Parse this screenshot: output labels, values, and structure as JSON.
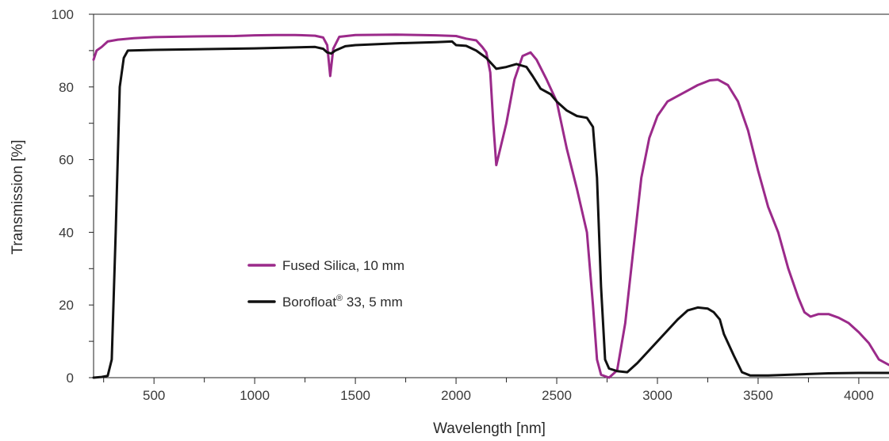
{
  "chart_data": {
    "type": "line",
    "xlabel": "Wavelength [nm]",
    "ylabel": "Transmission [%]",
    "xlim": [
      200,
      4150
    ],
    "ylim": [
      0,
      100
    ],
    "xticks": [
      {
        "value": 250,
        "label": ""
      },
      {
        "value": 500,
        "label": "500"
      },
      {
        "value": 750,
        "label": ""
      },
      {
        "value": 1000,
        "label": "1000"
      },
      {
        "value": 1250,
        "label": ""
      },
      {
        "value": 1500,
        "label": "1500"
      },
      {
        "value": 1750,
        "label": ""
      },
      {
        "value": 2000,
        "label": "2000"
      },
      {
        "value": 2250,
        "label": ""
      },
      {
        "value": 2500,
        "label": "2500"
      },
      {
        "value": 2750,
        "label": ""
      },
      {
        "value": 3000,
        "label": "3000"
      },
      {
        "value": 3250,
        "label": ""
      },
      {
        "value": 3500,
        "label": "3500"
      },
      {
        "value": 3750,
        "label": ""
      },
      {
        "value": 4000,
        "label": "4000"
      }
    ],
    "yticks": [
      {
        "value": 0,
        "label": "0"
      },
      {
        "value": 10,
        "label": ""
      },
      {
        "value": 20,
        "label": "20"
      },
      {
        "value": 30,
        "label": ""
      },
      {
        "value": 40,
        "label": "40"
      },
      {
        "value": 50,
        "label": ""
      },
      {
        "value": 60,
        "label": "60"
      },
      {
        "value": 70,
        "label": ""
      },
      {
        "value": 80,
        "label": "80"
      },
      {
        "value": 90,
        "label": ""
      },
      {
        "value": 100,
        "label": "100"
      }
    ],
    "grid": false,
    "legend_position": "center-left",
    "series": [
      {
        "name": "Fused Silica, 10 mm",
        "color": "#9b2a8a",
        "points": [
          [
            200,
            87.5
          ],
          [
            215,
            90.0
          ],
          [
            240,
            91.0
          ],
          [
            270,
            92.5
          ],
          [
            320,
            93.0
          ],
          [
            400,
            93.4
          ],
          [
            500,
            93.7
          ],
          [
            700,
            93.9
          ],
          [
            900,
            94.0
          ],
          [
            1000,
            94.2
          ],
          [
            1100,
            94.3
          ],
          [
            1200,
            94.3
          ],
          [
            1250,
            94.2
          ],
          [
            1300,
            94.1
          ],
          [
            1340,
            93.6
          ],
          [
            1360,
            91.5
          ],
          [
            1375,
            83.0
          ],
          [
            1390,
            90.5
          ],
          [
            1420,
            93.8
          ],
          [
            1500,
            94.3
          ],
          [
            1700,
            94.4
          ],
          [
            1900,
            94.2
          ],
          [
            2000,
            94.0
          ],
          [
            2050,
            93.3
          ],
          [
            2100,
            92.8
          ],
          [
            2130,
            91.0
          ],
          [
            2150,
            89.5
          ],
          [
            2170,
            84.0
          ],
          [
            2185,
            70.0
          ],
          [
            2200,
            58.5
          ],
          [
            2215,
            62.0
          ],
          [
            2250,
            70.0
          ],
          [
            2290,
            82.0
          ],
          [
            2330,
            88.5
          ],
          [
            2370,
            89.5
          ],
          [
            2400,
            87.5
          ],
          [
            2450,
            82.0
          ],
          [
            2500,
            76.0
          ],
          [
            2550,
            63.0
          ],
          [
            2600,
            52.0
          ],
          [
            2650,
            40.0
          ],
          [
            2680,
            20.0
          ],
          [
            2700,
            5.0
          ],
          [
            2720,
            0.8
          ],
          [
            2760,
            0.0
          ],
          [
            2800,
            2.0
          ],
          [
            2840,
            15.0
          ],
          [
            2880,
            35.0
          ],
          [
            2920,
            55.0
          ],
          [
            2960,
            66.0
          ],
          [
            3000,
            72.0
          ],
          [
            3050,
            76.0
          ],
          [
            3100,
            77.5
          ],
          [
            3150,
            79.0
          ],
          [
            3200,
            80.5
          ],
          [
            3260,
            81.8
          ],
          [
            3300,
            82.0
          ],
          [
            3350,
            80.5
          ],
          [
            3400,
            76.0
          ],
          [
            3450,
            68.0
          ],
          [
            3500,
            57.0
          ],
          [
            3550,
            47.0
          ],
          [
            3600,
            40.0
          ],
          [
            3650,
            30.0
          ],
          [
            3700,
            22.0
          ],
          [
            3730,
            18.0
          ],
          [
            3760,
            16.8
          ],
          [
            3800,
            17.5
          ],
          [
            3850,
            17.5
          ],
          [
            3900,
            16.5
          ],
          [
            3950,
            15.0
          ],
          [
            4000,
            12.5
          ],
          [
            4050,
            9.5
          ],
          [
            4100,
            5.0
          ],
          [
            4150,
            3.5
          ]
        ]
      },
      {
        "name": "Borofloat® 33, 5 mm",
        "color": "#111111",
        "points": [
          [
            200,
            0.0
          ],
          [
            240,
            0.2
          ],
          [
            270,
            0.5
          ],
          [
            290,
            5.0
          ],
          [
            310,
            40.0
          ],
          [
            330,
            80.0
          ],
          [
            350,
            88.0
          ],
          [
            370,
            90.0
          ],
          [
            500,
            90.2
          ],
          [
            1000,
            90.6
          ],
          [
            1300,
            91.0
          ],
          [
            1340,
            90.5
          ],
          [
            1360,
            89.5
          ],
          [
            1380,
            89.2
          ],
          [
            1400,
            90.0
          ],
          [
            1450,
            91.2
          ],
          [
            1500,
            91.5
          ],
          [
            1700,
            92.0
          ],
          [
            1900,
            92.3
          ],
          [
            1980,
            92.5
          ],
          [
            2000,
            91.5
          ],
          [
            2050,
            91.3
          ],
          [
            2100,
            90.0
          ],
          [
            2150,
            88.0
          ],
          [
            2200,
            85.0
          ],
          [
            2250,
            85.5
          ],
          [
            2300,
            86.3
          ],
          [
            2350,
            85.5
          ],
          [
            2380,
            83.0
          ],
          [
            2420,
            79.5
          ],
          [
            2470,
            78.0
          ],
          [
            2500,
            76.0
          ],
          [
            2550,
            73.5
          ],
          [
            2600,
            72.0
          ],
          [
            2650,
            71.5
          ],
          [
            2680,
            69.0
          ],
          [
            2700,
            55.0
          ],
          [
            2720,
            25.0
          ],
          [
            2740,
            5.0
          ],
          [
            2760,
            2.5
          ],
          [
            2800,
            1.8
          ],
          [
            2850,
            1.5
          ],
          [
            2900,
            4.0
          ],
          [
            3000,
            10.0
          ],
          [
            3100,
            16.0
          ],
          [
            3150,
            18.5
          ],
          [
            3200,
            19.3
          ],
          [
            3250,
            19.0
          ],
          [
            3280,
            18.0
          ],
          [
            3310,
            16.0
          ],
          [
            3330,
            12.0
          ],
          [
            3380,
            6.0
          ],
          [
            3420,
            1.5
          ],
          [
            3460,
            0.6
          ],
          [
            3550,
            0.6
          ],
          [
            3700,
            0.9
          ],
          [
            3850,
            1.2
          ],
          [
            4000,
            1.3
          ],
          [
            4150,
            1.3
          ]
        ]
      }
    ],
    "legend": [
      {
        "label": "Fused Silica, 10 mm",
        "color": "#9b2a8a"
      },
      {
        "label": "Borofloat",
        "sup": "®",
        "label_tail": " 33, 5 mm",
        "color": "#111111"
      }
    ]
  }
}
